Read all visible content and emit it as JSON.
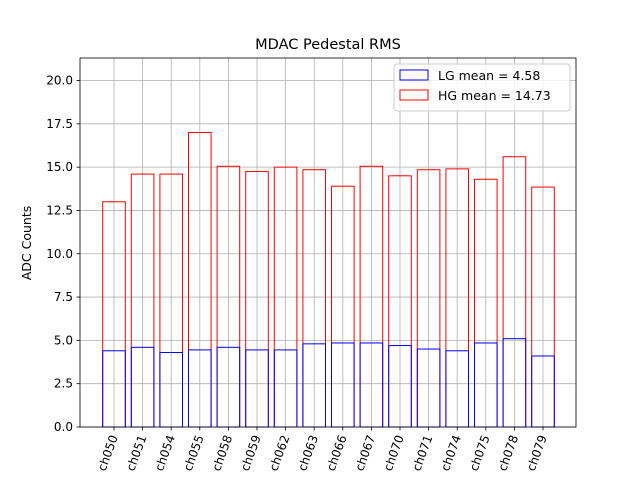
{
  "chart_data": {
    "type": "bar",
    "title": "MDAC Pedestal RMS",
    "xlabel": "",
    "ylabel": "ADC Counts",
    "ylim": [
      0,
      21.3
    ],
    "yticks": [
      "0.0",
      "2.5",
      "5.0",
      "7.5",
      "10.0",
      "12.5",
      "15.0",
      "17.5",
      "20.0"
    ],
    "ytick_values": [
      0,
      2.5,
      5,
      7.5,
      10,
      12.5,
      15,
      17.5,
      20
    ],
    "grid": true,
    "legend_position": "top-right",
    "categories": [
      "ch050",
      "ch051",
      "ch054",
      "ch055",
      "ch058",
      "ch059",
      "ch062",
      "ch063",
      "ch066",
      "ch067",
      "ch070",
      "ch071",
      "ch074",
      "ch075",
      "ch078",
      "ch079"
    ],
    "series": [
      {
        "name": "HG mean = 14.73",
        "color": "#ff0000",
        "values": [
          13.0,
          14.6,
          14.6,
          17.0,
          15.05,
          14.75,
          15.0,
          14.85,
          13.9,
          15.05,
          14.5,
          14.85,
          14.9,
          14.3,
          15.6,
          13.85
        ]
      },
      {
        "name": "LG mean = 4.58",
        "color": "#0000ff",
        "values": [
          4.4,
          4.6,
          4.3,
          4.45,
          4.6,
          4.45,
          4.45,
          4.8,
          4.85,
          4.85,
          4.7,
          4.5,
          4.4,
          4.85,
          5.1,
          4.1
        ]
      }
    ],
    "legend": [
      {
        "label": "LG mean = 4.58",
        "color": "#0000ff"
      },
      {
        "label": "HG mean = 14.73",
        "color": "#ff0000"
      }
    ]
  }
}
